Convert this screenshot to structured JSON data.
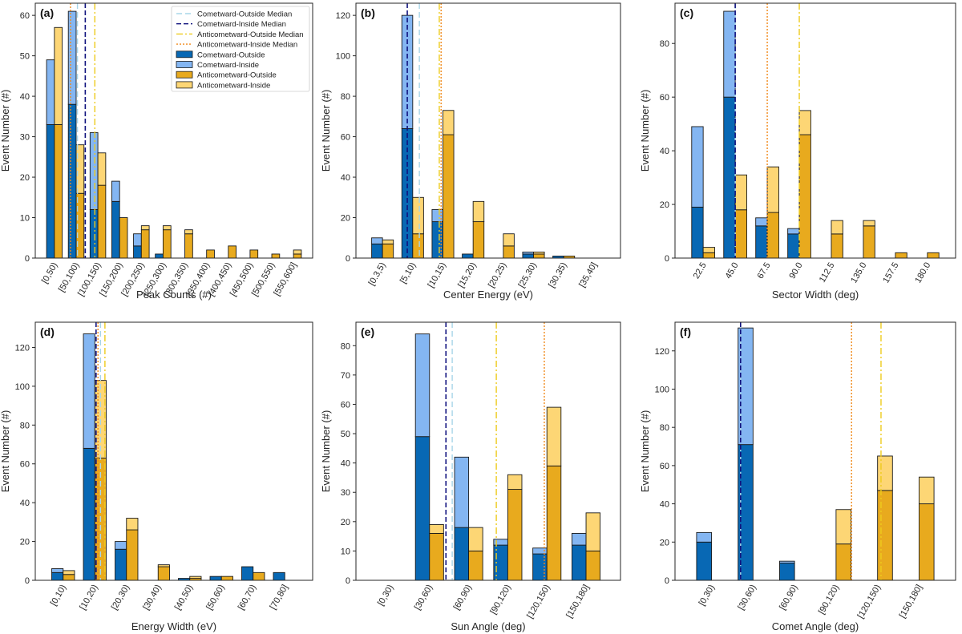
{
  "colors": {
    "cometward_outside": "#0868b4",
    "cometward_inside": "#84b6f2",
    "anticometward_outside": "#e8aa1e",
    "anticometward_inside": "#fdd675",
    "median_cometward_outside": "#a7d5e8",
    "median_cometward_inside": "#10127e",
    "median_anticometward_outside": "#eecb1d",
    "median_anticometward_inside": "#f08a1c",
    "axes": "#262626",
    "bar_edge": "#1a1a1a"
  },
  "legend": {
    "entries": [
      {
        "key": "median_cometward_outside",
        "label": "Cometward-Outside Median",
        "kind": "line",
        "dash": "7,4"
      },
      {
        "key": "median_cometward_inside",
        "label": "Cometward-Inside Median",
        "kind": "line",
        "dash": "6,3"
      },
      {
        "key": "median_anticometward_outside",
        "label": "Anticometward-Outside Median",
        "kind": "line",
        "dash": "8,3,2,3"
      },
      {
        "key": "median_anticometward_inside",
        "label": "Anticometward-Inside Median",
        "kind": "line",
        "dash": "2,2"
      },
      {
        "key": "cometward_outside",
        "label": "Cometward-Outside",
        "kind": "patch"
      },
      {
        "key": "cometward_inside",
        "label": "Cometward-Inside",
        "kind": "patch"
      },
      {
        "key": "anticometward_outside",
        "label": "Anticometward-Outside",
        "kind": "patch"
      },
      {
        "key": "anticometward_inside",
        "label": "Anticometward-Inside",
        "kind": "patch"
      }
    ]
  },
  "chart_data": [
    {
      "panel": "(a)",
      "type": "bar",
      "stacked": true,
      "xlabel": "Peak Counts (#)",
      "ylabel": "Event Number (#)",
      "ylim": [
        0,
        63
      ],
      "yticks": [
        0,
        10,
        20,
        30,
        40,
        50,
        60
      ],
      "legend_position": "top-right",
      "categories": [
        "[0,50)",
        "[50,100)",
        "[100,150)",
        "[150,200)",
        "[200,250)",
        "[250,300)",
        "[300,350)",
        "[350,400)",
        "[400,450)",
        "[450,500)",
        "[500,550)",
        "[550,600]"
      ],
      "cometward": {
        "outside": [
          33,
          38,
          12,
          14,
          3,
          1,
          0,
          0,
          0,
          0,
          0,
          0
        ],
        "total": [
          49,
          61,
          31,
          19,
          6,
          1,
          0,
          0,
          0,
          0,
          0,
          0
        ]
      },
      "anticometward": {
        "outside": [
          33,
          16,
          18,
          10,
          7,
          7,
          6,
          2,
          3,
          2,
          1,
          1
        ],
        "total": [
          57,
          28,
          26,
          10,
          8,
          8,
          7,
          2,
          3,
          2,
          1,
          2
        ]
      },
      "medians": {
        "cometward_outside": 78,
        "cometward_inside": 96,
        "anticometward_outside": 118,
        "anticometward_inside": 62
      }
    },
    {
      "panel": "(b)",
      "type": "bar",
      "stacked": true,
      "xlabel": "Center Energy (eV)",
      "ylabel": "Event Number (#)",
      "ylim": [
        0,
        126
      ],
      "yticks": [
        0,
        20,
        40,
        60,
        80,
        100,
        120
      ],
      "categories": [
        "[0.3,5)",
        "[5,10)",
        "[10,15)",
        "[15,20)",
        "[20,25)",
        "[25,30)",
        "[30,35)",
        "[35,40]"
      ],
      "cometward": {
        "outside": [
          7,
          64,
          18,
          2,
          0,
          2,
          1,
          0
        ],
        "total": [
          10,
          120,
          24,
          2,
          0,
          3,
          1,
          0
        ]
      },
      "anticometward": {
        "outside": [
          7,
          12,
          61,
          18,
          6,
          2,
          1,
          0
        ],
        "total": [
          9,
          30,
          73,
          28,
          12,
          3,
          1,
          0
        ]
      },
      "medians": {
        "cometward_outside": 8.6,
        "cometward_inside": 6.6,
        "anticometward_outside": 11.9,
        "anticometward_inside": 12.2
      }
    },
    {
      "panel": "(c)",
      "type": "bar",
      "stacked": true,
      "xlabel": "Sector Width (deg)",
      "ylabel": "Event Number (#)",
      "ylim": [
        0,
        95
      ],
      "yticks": [
        0,
        20,
        40,
        60,
        80
      ],
      "categories": [
        "22.5",
        "45.0",
        "67.5",
        "90.0",
        "112.5",
        "135.0",
        "157.5",
        "180.0"
      ],
      "cometward": {
        "outside": [
          19,
          60,
          12,
          9,
          0,
          0,
          0,
          0
        ],
        "total": [
          49,
          92,
          15,
          11,
          0,
          0,
          0,
          0
        ]
      },
      "anticometward": {
        "outside": [
          2,
          18,
          17,
          46,
          9,
          12,
          2,
          2
        ],
        "total": [
          4,
          31,
          34,
          55,
          14,
          14,
          2,
          2
        ]
      },
      "medians": {
        "cometward_outside": 45.0,
        "cometward_inside": 45.0,
        "anticometward_outside": 90.0,
        "anticometward_inside": 67.5
      }
    },
    {
      "panel": "(d)",
      "type": "bar",
      "stacked": true,
      "xlabel": "Energy Width (eV)",
      "ylabel": "Event Number (#)",
      "ylim": [
        0,
        133
      ],
      "yticks": [
        0,
        20,
        40,
        60,
        80,
        100,
        120
      ],
      "categories": [
        "[0,10)",
        "[10,20)",
        "[20,30)",
        "[30,40)",
        "[40,50)",
        "[50,60)",
        "[60,70)",
        "[70,80]"
      ],
      "cometward": {
        "outside": [
          4,
          68,
          16,
          0,
          1,
          2,
          7,
          4
        ],
        "total": [
          6,
          127,
          20,
          0,
          1,
          2,
          7,
          4
        ]
      },
      "anticometward": {
        "outside": [
          3,
          63,
          26,
          7,
          1,
          2,
          4,
          0
        ],
        "total": [
          5,
          103,
          32,
          8,
          2,
          2,
          4,
          0
        ]
      },
      "medians": {
        "cometward_outside": 16.8,
        "cometward_inside": 15.4,
        "anticometward_outside": 18.2,
        "anticometward_inside": 16.0
      }
    },
    {
      "panel": "(e)",
      "type": "bar",
      "stacked": true,
      "xlabel": "Sun Angle (deg)",
      "ylabel": "Event Number (#)",
      "ylim": [
        0,
        88
      ],
      "yticks": [
        0,
        10,
        20,
        30,
        40,
        50,
        60,
        70,
        80
      ],
      "categories": [
        "[0,30)",
        "[30,60)",
        "[60,90)",
        "[90,120)",
        "[120,150)",
        "[150,180]"
      ],
      "cometward": {
        "outside": [
          0,
          49,
          18,
          12,
          9,
          12
        ],
        "total": [
          0,
          84,
          42,
          14,
          11,
          16
        ]
      },
      "anticometward": {
        "outside": [
          0,
          16,
          10,
          31,
          39,
          10
        ],
        "total": [
          0,
          19,
          18,
          36,
          59,
          23
        ]
      },
      "medians": {
        "cometward_outside": 62.4,
        "cometward_inside": 57.6,
        "anticometward_outside": 96.2,
        "anticometward_inside": 133.0
      }
    },
    {
      "panel": "(f)",
      "type": "bar",
      "stacked": true,
      "xlabel": "Comet Angle (deg)",
      "ylabel": "Event Number (#)",
      "ylim": [
        0,
        135
      ],
      "yticks": [
        0,
        20,
        40,
        60,
        80,
        100,
        120
      ],
      "categories": [
        "[0,30)",
        "[30,60)",
        "[60,90)",
        "[90,120)",
        "[120,150)",
        "[150,180]"
      ],
      "cometward": {
        "outside": [
          20,
          71,
          9,
          0,
          0,
          0
        ],
        "total": [
          25,
          132,
          10,
          0,
          0,
          0
        ]
      },
      "anticometward": {
        "outside": [
          0,
          0,
          0,
          19,
          47,
          40
        ],
        "total": [
          0,
          0,
          0,
          37,
          65,
          54
        ]
      },
      "medians": {
        "cometward_outside": 36.0,
        "cometward_inside": 36.0,
        "anticometward_outside": 137.5,
        "anticometward_inside": 116.2
      }
    }
  ]
}
